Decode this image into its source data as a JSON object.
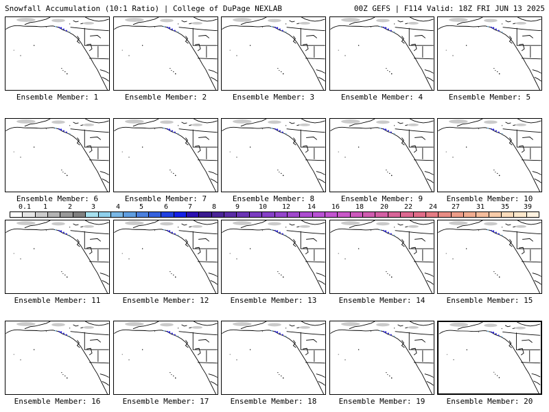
{
  "header": {
    "left": "Snowfall Accumulation (10:1 Ratio) | College of DuPage NEXLAB",
    "right": "00Z GEFS | F114 Valid: 18Z FRI JUN 13 2025"
  },
  "panels": [
    {
      "label": "Ensemble Member: 1"
    },
    {
      "label": "Ensemble Member: 2"
    },
    {
      "label": "Ensemble Member: 3"
    },
    {
      "label": "Ensemble Member: 4"
    },
    {
      "label": "Ensemble Member: 5"
    },
    {
      "label": "Ensemble Member: 6"
    },
    {
      "label": "Ensemble Member: 7"
    },
    {
      "label": "Ensemble Member: 8"
    },
    {
      "label": "Ensemble Member: 9"
    },
    {
      "label": "Ensemble Member: 10"
    },
    {
      "label": "Ensemble Member: 11"
    },
    {
      "label": "Ensemble Member: 12"
    },
    {
      "label": "Ensemble Member: 13"
    },
    {
      "label": "Ensemble Member: 14"
    },
    {
      "label": "Ensemble Member: 15"
    },
    {
      "label": "Ensemble Member: 16"
    },
    {
      "label": "Ensemble Member: 17"
    },
    {
      "label": "Ensemble Member: 18"
    },
    {
      "label": "Ensemble Member: 19"
    },
    {
      "label": "Ensemble Member: 20"
    }
  ],
  "colorbar": {
    "labels": [
      "0.1",
      "1",
      "2",
      "3",
      "4",
      "5",
      "6",
      "7",
      "8",
      "9",
      "10",
      "12",
      "14",
      "16",
      "18",
      "20",
      "22",
      "24",
      "27",
      "31",
      "35",
      "39"
    ],
    "colors": [
      "#ffffff",
      "#e6e6e6",
      "#cccccc",
      "#b3b3b3",
      "#999999",
      "#808080",
      "#a6e0ef",
      "#8fd0ec",
      "#7ab8e6",
      "#5f9ee0",
      "#4a7fdd",
      "#3460dd",
      "#1f3fe0",
      "#1420e6",
      "#2a10b0",
      "#3a1a90",
      "#4a2498",
      "#5a2ca6",
      "#6a34b4",
      "#7a3cc0",
      "#8640c8",
      "#9444cc",
      "#a048cc",
      "#ac4cd0",
      "#b850d4",
      "#c254d0",
      "#c858c8",
      "#cc58bc",
      "#d05cb0",
      "#d460a4",
      "#d86498",
      "#dc6890",
      "#e06c88",
      "#e47c84",
      "#e88c84",
      "#ec9c88",
      "#f0ac90",
      "#f4bc9c",
      "#f8ccaa",
      "#fcdcbc",
      "#fde8cc",
      "#fff2e0"
    ]
  }
}
